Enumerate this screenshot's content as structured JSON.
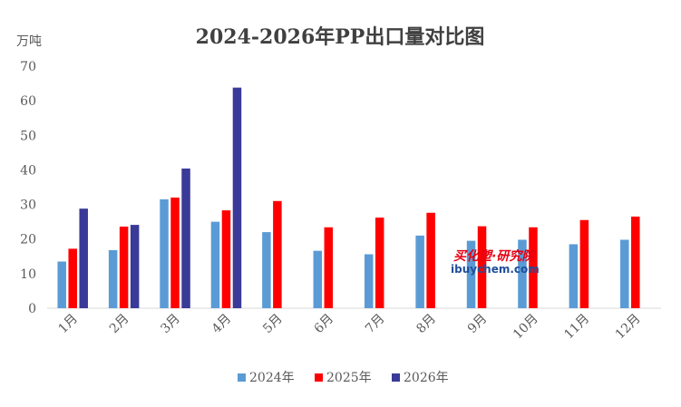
{
  "chart_data": {
    "type": "bar",
    "title": "2024-2026年PP出口量对比图",
    "ylabel": "万吨",
    "ylim": [
      0,
      70
    ],
    "yticks": [
      0,
      10,
      20,
      30,
      40,
      50,
      60,
      70
    ],
    "grid": false,
    "legend_position": "bottom",
    "categories": [
      "1月",
      "2月",
      "3月",
      "4月",
      "5月",
      "6月",
      "7月",
      "8月",
      "9月",
      "10月",
      "11月",
      "12月"
    ],
    "series": [
      {
        "name": "2024年",
        "color": "#5B9BD5",
        "values": [
          13.5,
          16.8,
          31.5,
          25,
          22,
          16.6,
          15.6,
          21,
          19.5,
          19.8,
          18.5,
          19.8
        ]
      },
      {
        "name": "2025年",
        "color": "#FF0000",
        "values": [
          17.2,
          23.6,
          32,
          28.3,
          31,
          23.4,
          26.2,
          27.6,
          23.7,
          23.4,
          25.5,
          26.5
        ]
      },
      {
        "name": "2026年",
        "color": "#3A3A98",
        "values": [
          28.8,
          24.1,
          40.4,
          63.8,
          null,
          null,
          null,
          null,
          null,
          null,
          null,
          null
        ]
      }
    ]
  },
  "watermark": {
    "line1": "买化塑·研究院",
    "line2": "ibuychem.com",
    "color_primary": "#E60012",
    "color_secondary": "#1F4E9A"
  }
}
